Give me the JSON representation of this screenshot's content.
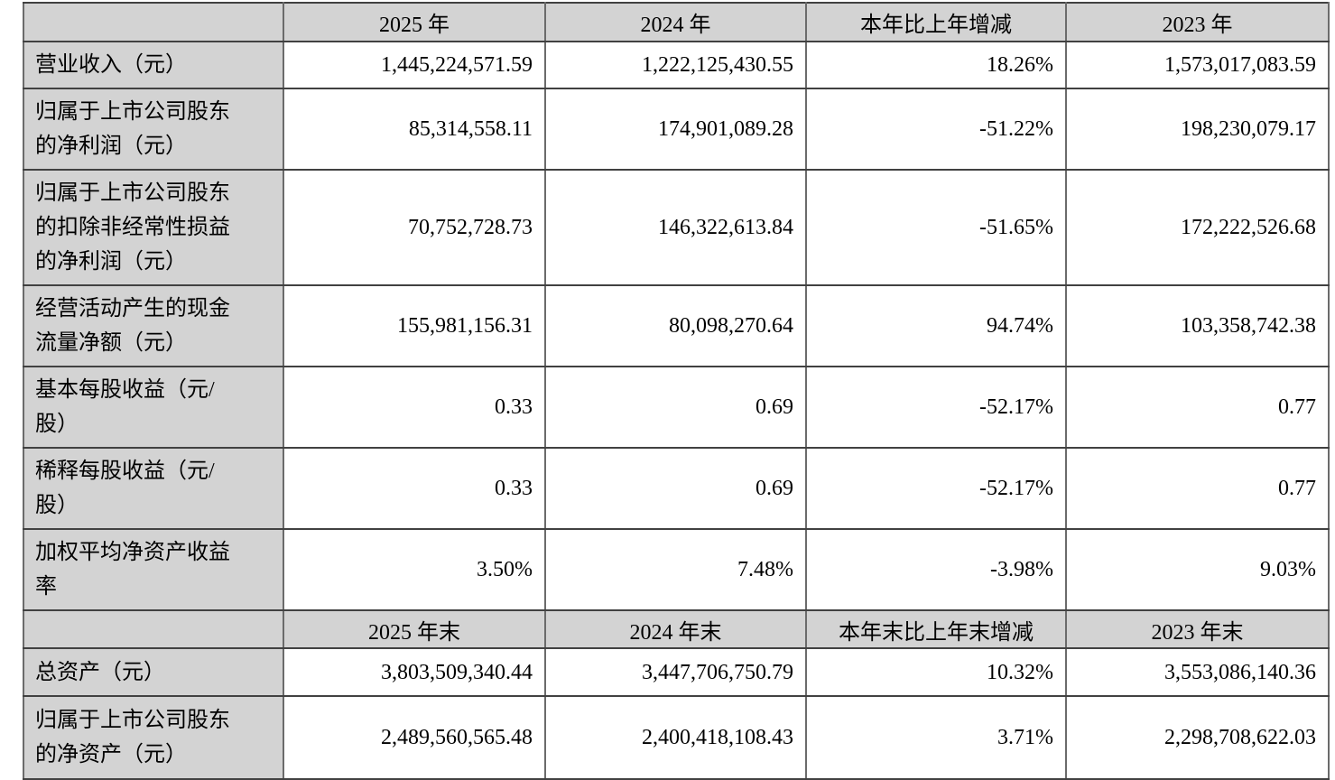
{
  "table": {
    "sections": [
      {
        "header": [
          "",
          "2025 年",
          "2024 年",
          "本年比上年增减",
          "2023 年"
        ],
        "rows": [
          {
            "label": "营业收入（元）",
            "values": [
              "1,445,224,571.59",
              "1,222,125,430.55",
              "18.26%",
              "1,573,017,083.59"
            ]
          },
          {
            "label": "归属于上市公司股东\n的净利润（元）",
            "values": [
              "85,314,558.11",
              "174,901,089.28",
              "-51.22%",
              "198,230,079.17"
            ]
          },
          {
            "label": "归属于上市公司股东\n的扣除非经常性损益\n的净利润（元）",
            "values": [
              "70,752,728.73",
              "146,322,613.84",
              "-51.65%",
              "172,222,526.68"
            ]
          },
          {
            "label": "经营活动产生的现金\n流量净额（元）",
            "values": [
              "155,981,156.31",
              "80,098,270.64",
              "94.74%",
              "103,358,742.38"
            ]
          },
          {
            "label": "基本每股收益（元/\n股）",
            "values": [
              "0.33",
              "0.69",
              "-52.17%",
              "0.77"
            ]
          },
          {
            "label": "稀释每股收益（元/\n股）",
            "values": [
              "0.33",
              "0.69",
              "-52.17%",
              "0.77"
            ]
          },
          {
            "label": "加权平均净资产收益\n率",
            "values": [
              "3.50%",
              "7.48%",
              "-3.98%",
              "9.03%"
            ]
          }
        ]
      },
      {
        "header": [
          "",
          "2025 年末",
          "2024 年末",
          "本年末比上年末增减",
          "2023 年末"
        ],
        "rows": [
          {
            "label": "总资产（元）",
            "values": [
              "3,803,509,340.44",
              "3,447,706,750.79",
              "10.32%",
              "3,553,086,140.36"
            ]
          },
          {
            "label": "归属于上市公司股东\n的净资产（元）",
            "values": [
              "2,489,560,565.48",
              "2,400,418,108.43",
              "3.71%",
              "2,298,708,622.03"
            ]
          }
        ]
      }
    ],
    "colors": {
      "header_fill": "#d3d3d3",
      "border_horizontal": "#414141",
      "border_vertical": "#6b6b6b"
    }
  }
}
